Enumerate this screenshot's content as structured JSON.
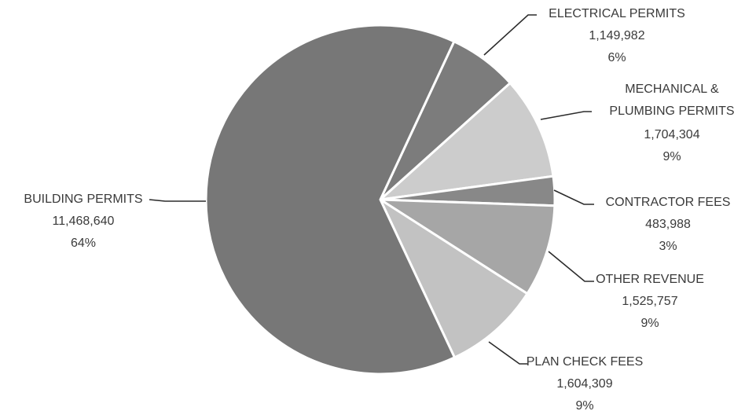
{
  "chart_data": {
    "type": "pie",
    "slices": [
      {
        "label": "ELECTRICAL PERMITS",
        "value_text": "1,149,982",
        "value": 1149982,
        "percent_text": "6%",
        "color": "#7c7c7c"
      },
      {
        "label": "MECHANICAL & PLUMBING PERMITS",
        "value_text": "1,704,304",
        "value": 1704304,
        "percent_text": "9%",
        "color": "#cccccc"
      },
      {
        "label": "CONTRACTOR FEES",
        "value_text": "483,988",
        "value": 483988,
        "percent_text": "3%",
        "color": "#888888"
      },
      {
        "label": "OTHER REVENUE",
        "value_text": "1,525,757",
        "value": 1525757,
        "percent_text": "9%",
        "color": "#a6a6a6"
      },
      {
        "label": "PLAN CHECK FEES",
        "value_text": "1,604,309",
        "value": 1604309,
        "percent_text": "9%",
        "color": "#c2c2c2"
      },
      {
        "label": "BUILDING PERMITS",
        "value_text": "11,468,640",
        "value": 11468640,
        "percent_text": "64%",
        "color": "#777777"
      }
    ],
    "start_angle_deg": 25,
    "direction": "clockwise",
    "legend": "none",
    "data_labels": "outside with leader lines"
  }
}
